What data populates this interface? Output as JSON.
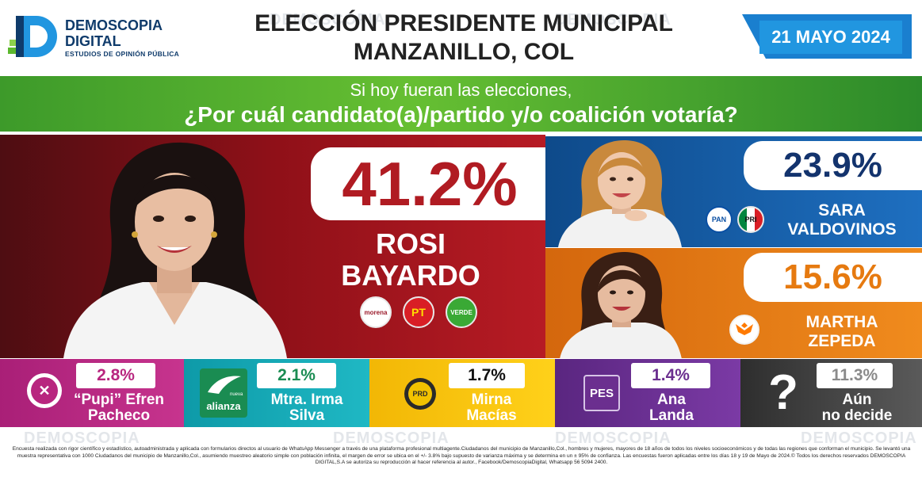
{
  "brand": {
    "name_line1": "DEMOSCOPIA",
    "name_line2": "DIGITAL",
    "tagline": "ESTUDIOS DE OPINIÓN PÚBLICA",
    "colors": {
      "navy": "#0f3b6b",
      "green": "#5cb82e",
      "blue": "#2196e0"
    }
  },
  "header": {
    "title_line1": "ELECCIÓN PRESIDENTE MUNICIPAL",
    "title_line2": "MANZANILLO, COL",
    "date": "21 MAYO 2024"
  },
  "question": {
    "line1": "Si hoy fueran las elecciones,",
    "line2": "¿Por cuál candidato(a)/partido y/o coalición votaría?"
  },
  "leader": {
    "percent": "41.2%",
    "name_line1": "ROSI",
    "name_line2": "BAYARDO",
    "parties": [
      {
        "label": "morena",
        "icon": "morena-logo-icon",
        "color": "#9b1b2b"
      },
      {
        "label": "PT",
        "icon": "pt-logo-icon",
        "color": "#d91e25"
      },
      {
        "label": "VERDE",
        "icon": "verde-logo-icon",
        "color": "#3aa935"
      }
    ]
  },
  "second": {
    "percent": "23.9%",
    "name_line1": "SARA",
    "name_line2": "VALDOVINOS",
    "parties": [
      {
        "label": "PAN",
        "icon": "pan-logo-icon",
        "color": "#0a4fa3"
      },
      {
        "label": "PRI",
        "icon": "pri-logo-icon",
        "color": "#00853f"
      }
    ]
  },
  "third": {
    "percent": "15.6%",
    "name_line1": "MARTHA",
    "name_line2": "ZEPEDA",
    "parties": [
      {
        "label": "MOVIMIENTO CIUDADANO",
        "icon": "mc-logo-icon",
        "color": "#ff7a00"
      }
    ]
  },
  "others": [
    {
      "percent": "2.8%",
      "name_line1": "“Pupi” Efren",
      "name_line2": "Pacheco",
      "icon": "fxm-logo-icon",
      "color": "#b8267f"
    },
    {
      "percent": "2.1%",
      "name_line1": "Mtra. Irma",
      "name_line2": "Silva",
      "icon": "nueva-alianza-logo-icon",
      "logo_text": "alianza",
      "logo_small": "nueva",
      "color": "#1aa6b7"
    },
    {
      "percent": "1.7%",
      "name_line1": "Mirna",
      "name_line2": "Macías",
      "icon": "prd-logo-icon",
      "logo_text": "PRD",
      "color": "#f2c200"
    },
    {
      "percent": "1.4%",
      "name_line1": "Ana",
      "name_line2": "Landa",
      "icon": "pes-logo-icon",
      "logo_text": "PES",
      "color": "#6b2f8f"
    },
    {
      "percent": "11.3%",
      "name_line1": "Aún",
      "name_line2": "no decide",
      "icon": "question-mark-icon",
      "logo_text": "?",
      "color": "#4a4a4a"
    }
  ],
  "footer": {
    "methodology": "Encuesta realizada con rigor científico y estadístico, autoadministrada y aplicada con formularios directos al usuario de WhatsApp Messenger a través de una plataforma profesional multiagente.Ciudadanos del municipio de Manzanillo,Col., hombres y mujeres, mayores de 18 años de todos los niveles socioeconómicos y de todas las regiones que conforman el municipio. Se levantó una muestra representativa con 1000 Ciudadanos del municipio de Manzanillo,Col., asumiendo muestreo aleatorio simple con población infinita, el margen de error se ubica en el +/- 3.8% bajo supuesto de varianza máxima y se determina en un ± 95% de confianza. Las encuestas fueron aplicadas entre los días 18 y 19 de Mayo de 2024.© Todos los derechos reservados DEMOSCOPIA DIGITAL,S.A se autoriza su reproducción al hacer referencia al autor., Facebook/DemoscopiaDigital, Whatsapp 56 5094 2400."
  }
}
